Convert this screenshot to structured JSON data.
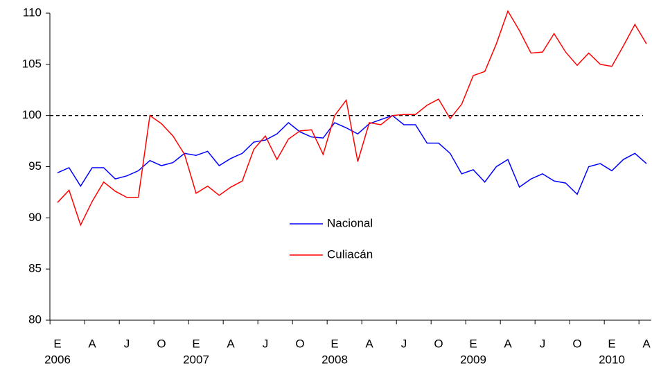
{
  "chart_data": {
    "type": "line",
    "categories": [
      "E",
      null,
      null,
      "A",
      null,
      null,
      "J",
      null,
      null,
      "O",
      null,
      null,
      "E",
      null,
      null,
      "A",
      null,
      null,
      "J",
      null,
      null,
      "O",
      null,
      null,
      "E",
      null,
      null,
      "A",
      null,
      null,
      "J",
      null,
      null,
      "O",
      null,
      null,
      "E",
      null,
      null,
      "A",
      null,
      null,
      "J",
      null,
      null,
      "O",
      null,
      null,
      "E",
      null,
      null,
      "A"
    ],
    "year_labels": [
      "2006",
      null,
      null,
      null,
      null,
      null,
      null,
      null,
      null,
      null,
      null,
      null,
      "2007",
      null,
      null,
      null,
      null,
      null,
      null,
      null,
      null,
      null,
      null,
      null,
      "2008",
      null,
      null,
      null,
      null,
      null,
      null,
      null,
      null,
      null,
      null,
      null,
      "2009",
      null,
      null,
      null,
      null,
      null,
      null,
      null,
      null,
      null,
      null,
      null,
      "2010",
      null,
      null,
      null
    ],
    "series": [
      {
        "name": "Nacional",
        "color": "#0000ff",
        "values": [
          94.4,
          94.9,
          93.1,
          94.9,
          94.9,
          93.8,
          94.1,
          94.6,
          95.6,
          95.1,
          95.4,
          96.3,
          96.1,
          96.5,
          95.1,
          95.8,
          96.3,
          97.4,
          97.6,
          98.2,
          99.3,
          98.4,
          97.9,
          97.8,
          99.3,
          98.8,
          98.2,
          99.2,
          99.6,
          100.0,
          99.1,
          99.1,
          97.3,
          97.3,
          96.3,
          94.3,
          94.7,
          93.5,
          95.0,
          95.7,
          93.0,
          93.8,
          94.3,
          93.6,
          93.4,
          92.3,
          95.0,
          95.3,
          94.6,
          95.7,
          96.3,
          95.3
        ]
      },
      {
        "name": "Culiacán",
        "color": "#ff0000",
        "values": [
          91.5,
          92.7,
          89.3,
          91.6,
          93.5,
          92.6,
          92.0,
          92.0,
          100.0,
          99.2,
          98.0,
          96.2,
          92.4,
          93.1,
          92.2,
          93.0,
          93.6,
          96.7,
          98.0,
          95.7,
          97.7,
          98.5,
          98.6,
          96.2,
          100.0,
          101.5,
          95.5,
          99.3,
          99.1,
          100.0,
          100.1,
          100.1,
          101.0,
          101.6,
          99.7,
          101.1,
          103.9,
          104.3,
          107.0,
          110.2,
          108.3,
          106.1,
          106.2,
          108.0,
          106.2,
          104.9,
          106.1,
          105.0,
          104.8,
          106.8,
          108.9,
          107.0
        ]
      }
    ],
    "ylim": [
      80,
      110
    ],
    "yticks": [
      80,
      85,
      90,
      95,
      100,
      105,
      110
    ],
    "reference_line": 100,
    "legend": "center",
    "grid": false
  }
}
